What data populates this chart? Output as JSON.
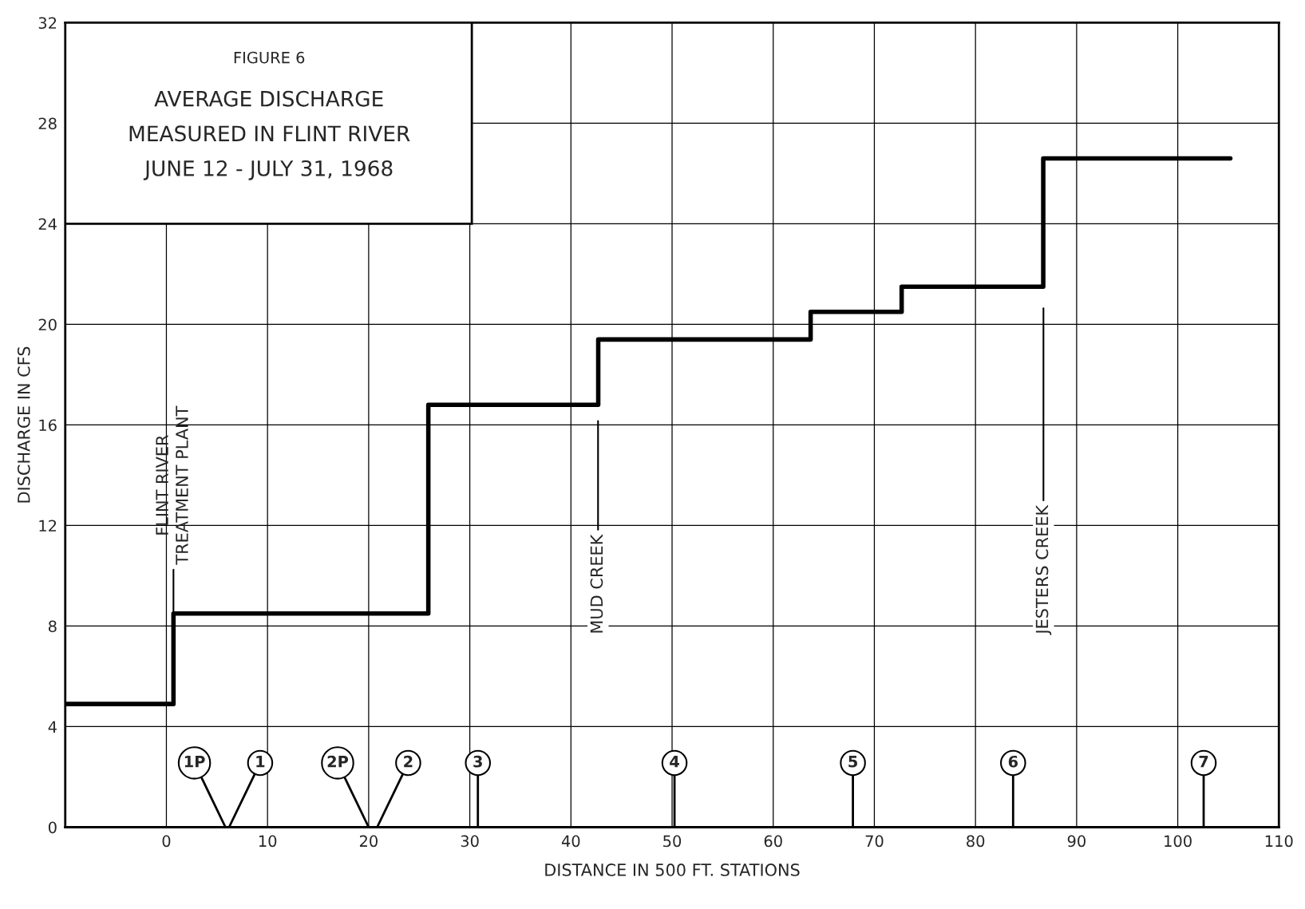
{
  "chart_data": {
    "type": "step",
    "title": "FIGURE 6",
    "subtitle": "AVERAGE DISCHARGE\nMEASURED IN FLINT RIVER\nJUNE 12 - JULY 31, 1968",
    "xlabel": "DISTANCE IN 500 FT. STATIONS",
    "ylabel": "DISCHARGE IN CFS",
    "x": [
      -10,
      0.7,
      25.9,
      42.7,
      63.7,
      72.7,
      86.7,
      105.2
    ],
    "series": [
      {
        "color": "#000000",
        "values": [
          4.9,
          8.5,
          16.8,
          19.4,
          20.5,
          21.5,
          26.6,
          26.6
        ]
      }
    ],
    "xlim": [
      -10,
      110
    ],
    "xticks": [
      0,
      10,
      20,
      30,
      40,
      50,
      60,
      70,
      80,
      90,
      100,
      110
    ],
    "ylim": [
      0,
      32
    ],
    "yticks": [
      0,
      4,
      8,
      12,
      16,
      20,
      24,
      28,
      32
    ],
    "grid": true,
    "annotations": [
      {
        "text": "FLINT RIVER\nTREATMENT PLANT",
        "x": 0.7,
        "y": 8.5
      },
      "MUD CREEK",
      "JESTERS CREEK",
      "1P",
      "1",
      "2P",
      "2",
      "3",
      "4",
      "5",
      "6",
      "7"
    ]
  }
}
